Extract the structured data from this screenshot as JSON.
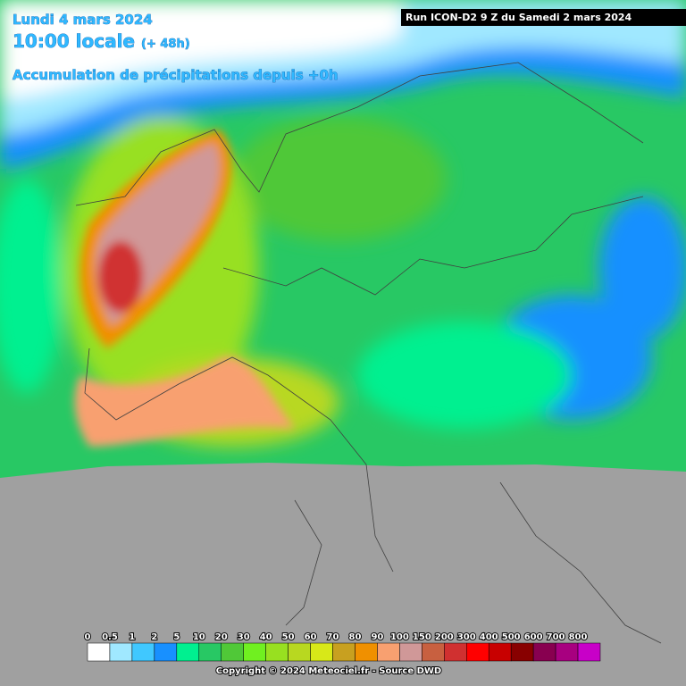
{
  "header": {
    "date": "Lundi 4 mars 2024",
    "time": "10:00 locale",
    "offset": "(+ 48h)",
    "product": "Accumulation de précipitations depuis +0h",
    "run": "Run ICON-D2 9 Z du Samedi 2 mars 2024"
  },
  "legend": {
    "labels": [
      "0",
      "0.5",
      "1",
      "2",
      "5",
      "10",
      "20",
      "30",
      "40",
      "50",
      "60",
      "70",
      "80",
      "90",
      "100",
      "150",
      "200",
      "300",
      "400",
      "500",
      "600",
      "700",
      "800"
    ],
    "colors": [
      "#ffffff",
      "#a0e8ff",
      "#40c8ff",
      "#1890ff",
      "#00f090",
      "#28c864",
      "#50c838",
      "#70f020",
      "#98e020",
      "#b8d820",
      "#d8e818",
      "#c8a020",
      "#f09000",
      "#f8a070",
      "#d09898",
      "#c86040",
      "#d03030",
      "#ff0000",
      "#c80000",
      "#880000",
      "#880050",
      "#a80080",
      "#c800c8"
    ]
  },
  "footer": {
    "copyright": "Copyright © 2024 Meteociel.fr - Source DWD"
  }
}
